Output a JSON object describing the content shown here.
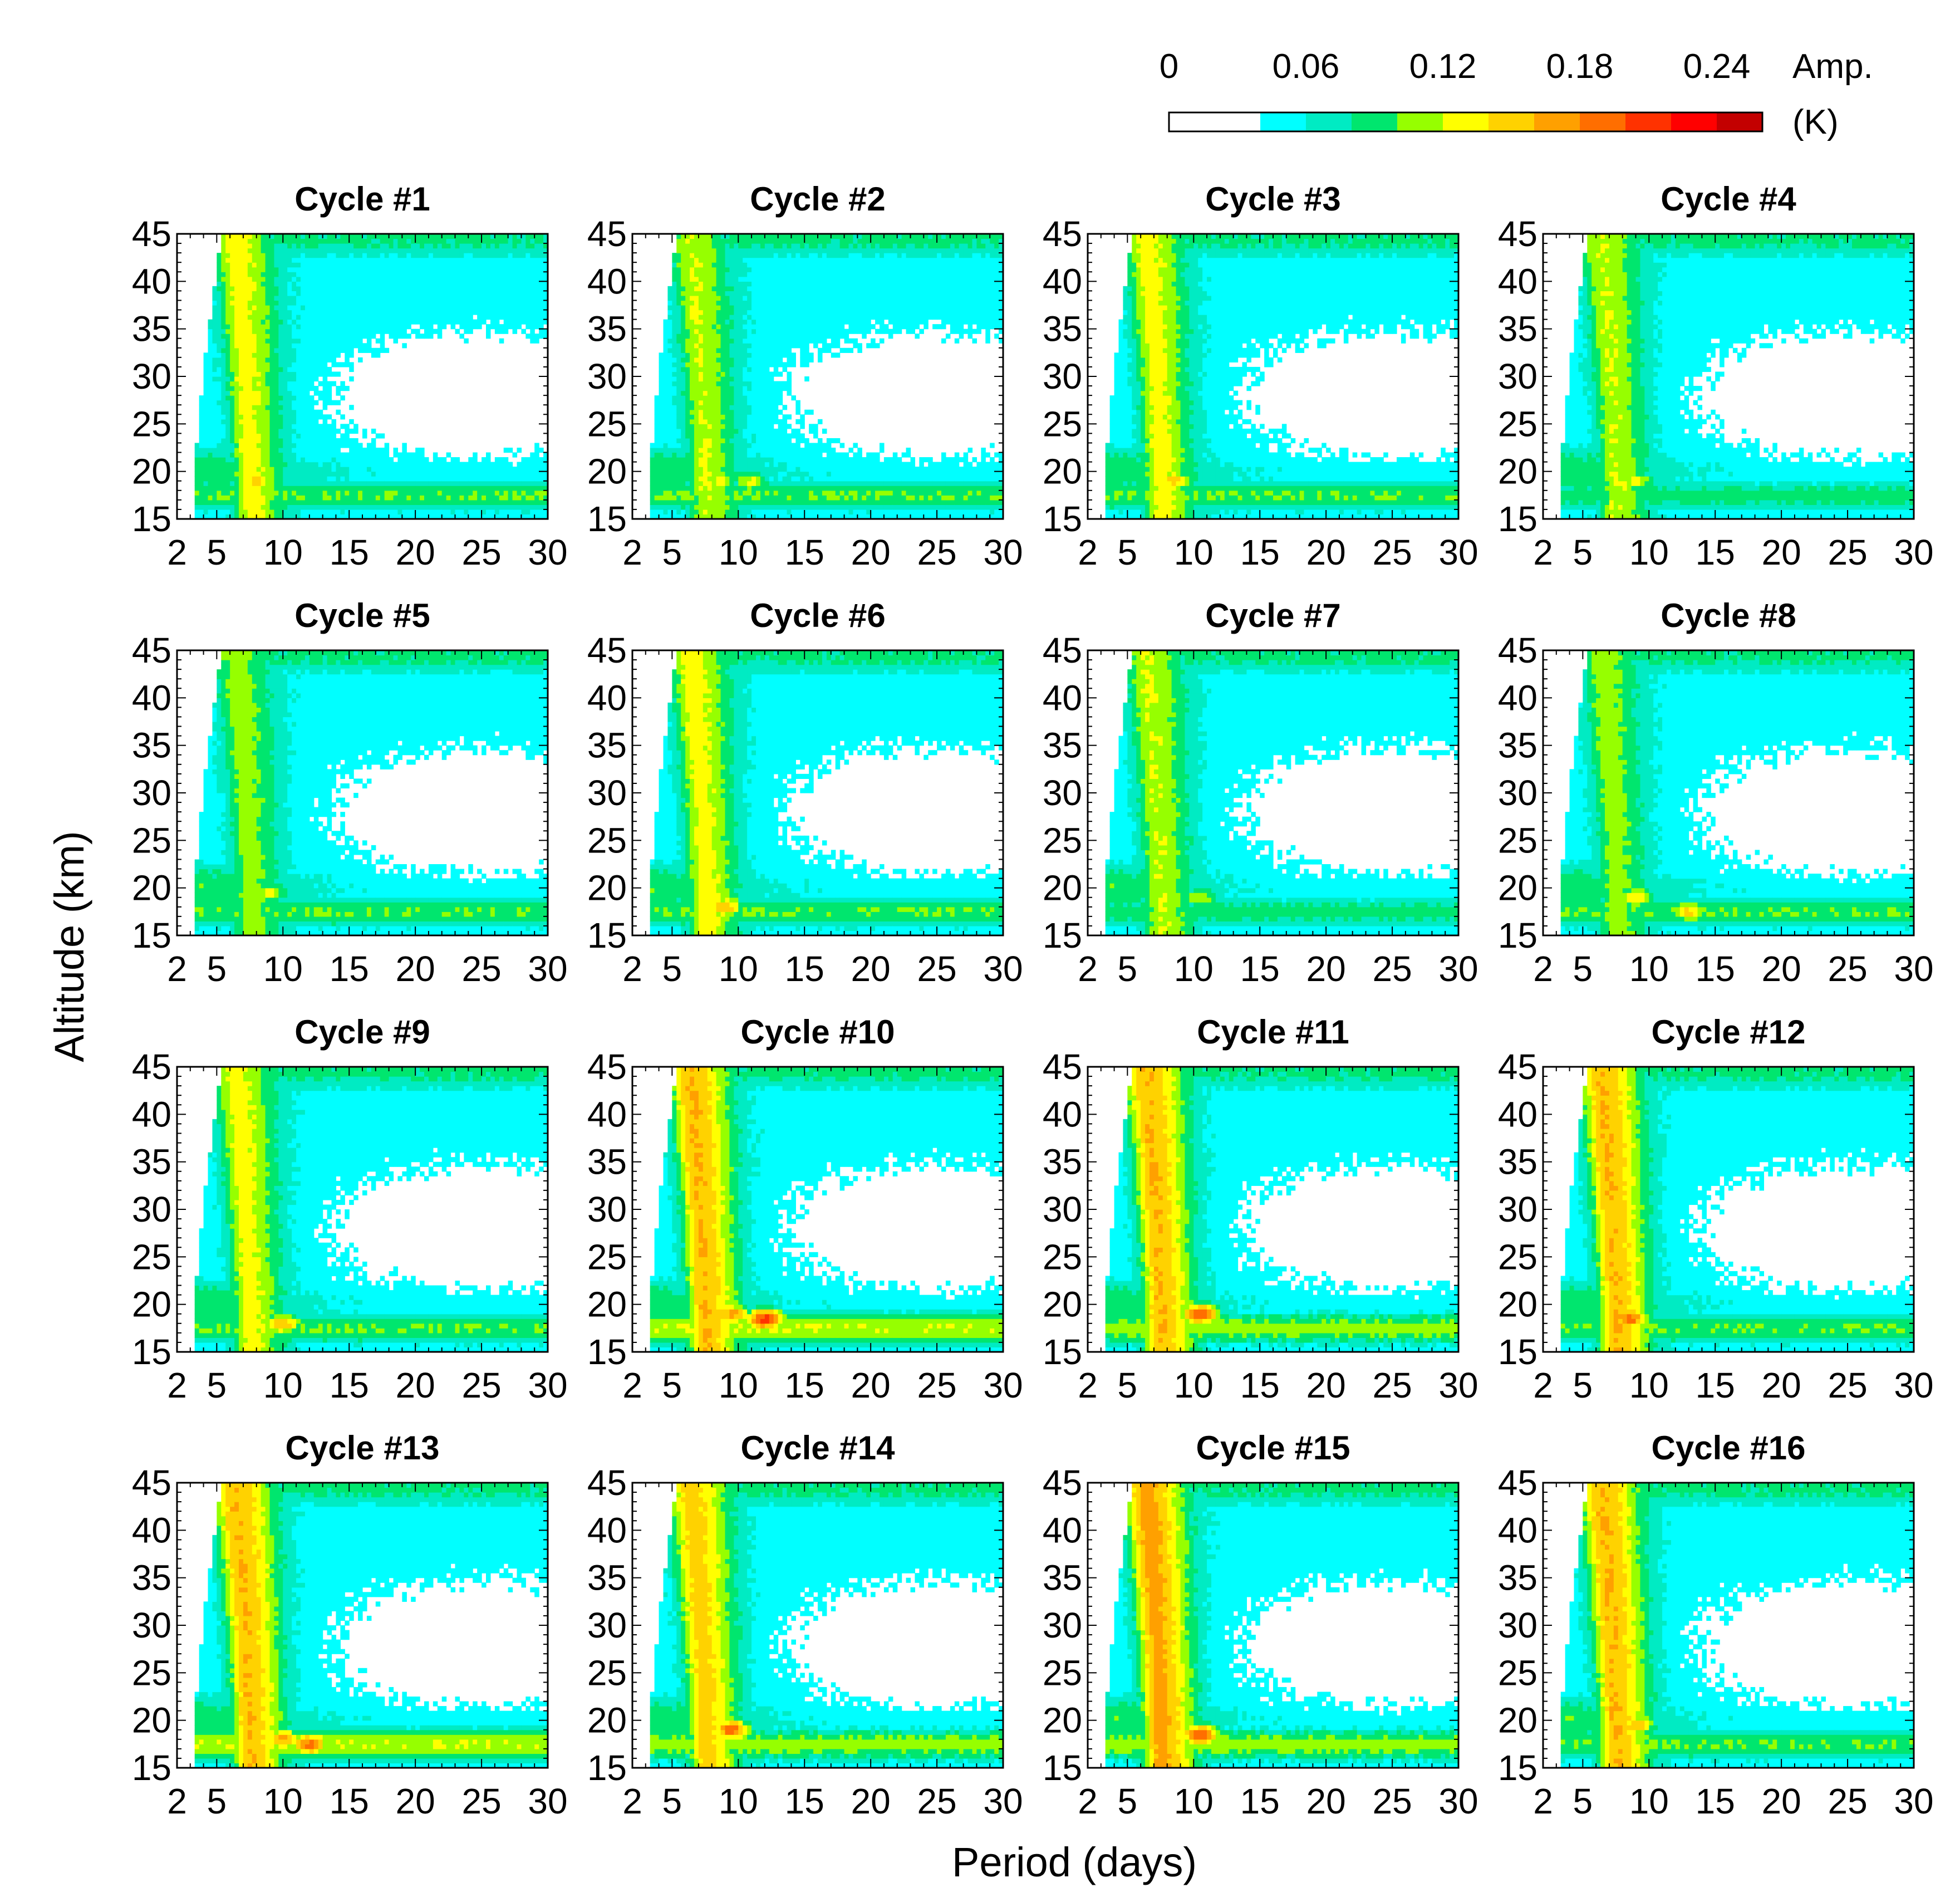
{
  "colors": {
    "levels": [
      "#ffffff",
      "#00ffff",
      "#00ebc3",
      "#00e66e",
      "#96ff00",
      "#ffff00",
      "#ffd200",
      "#ffa000",
      "#ff6e00",
      "#ff3200",
      "#ff0000",
      "#c30000"
    ],
    "frame": "#000000",
    "background": "#ffffff"
  },
  "colorbar": {
    "tick_labels": [
      "0",
      "0.06",
      "0.12",
      "0.18",
      "0.24"
    ],
    "tick_values": [
      0,
      0.06,
      0.12,
      0.18,
      0.24
    ],
    "boundaries": [
      0,
      0.04,
      0.06,
      0.08,
      0.1,
      0.12,
      0.14,
      0.16,
      0.18,
      0.2,
      0.22,
      0.24,
      0.26
    ],
    "label_line1": "Amp.",
    "label_line2": "(K)"
  },
  "chart_data": {
    "type": "heatmap",
    "description_xlabel": "Period (days)",
    "xlabel": "Period (days)",
    "ylabel": "Altitude (km)",
    "xlim": [
      2,
      30
    ],
    "ylim": [
      15,
      45
    ],
    "xticks": [
      2,
      5,
      10,
      15,
      20,
      25,
      30
    ],
    "xtick_labels": [
      "2",
      "5",
      "10",
      "15",
      "20",
      "25",
      "30"
    ],
    "yticks": [
      15,
      20,
      25,
      30,
      35,
      40,
      45
    ],
    "ytick_labels": [
      "15",
      "20",
      "25",
      "30",
      "35",
      "40",
      "45"
    ],
    "panels": [
      {
        "title": "Cycle #1",
        "ridge": 0.13,
        "hot": [
          [
            8.0,
            19,
            0.15
          ]
        ],
        "tail": 0.1
      },
      {
        "title": "Cycle #2",
        "ridge": 0.12,
        "hot": [
          [
            8.5,
            19,
            0.13
          ],
          [
            11,
            19,
            0.13
          ]
        ],
        "tail": 0.1
      },
      {
        "title": "Cycle #3",
        "ridge": 0.13,
        "hot": [
          [
            8.5,
            19,
            0.15
          ]
        ],
        "tail": 0.1
      },
      {
        "title": "Cycle #4",
        "ridge": 0.12,
        "hot": [
          [
            9,
            19,
            0.13
          ]
        ],
        "tail": 0.09
      },
      {
        "title": "Cycle #5",
        "ridge": 0.11,
        "hot": [
          [
            9,
            19.5,
            0.13
          ]
        ],
        "tail": 0.1
      },
      {
        "title": "Cycle #6",
        "ridge": 0.13,
        "hot": [
          [
            9,
            18,
            0.16
          ]
        ],
        "tail": 0.1
      },
      {
        "title": "Cycle #7",
        "ridge": 0.12,
        "hot": [
          [
            10.5,
            19,
            0.12
          ]
        ],
        "tail": 0.09
      },
      {
        "title": "Cycle #8",
        "ridge": 0.11,
        "hot": [
          [
            9,
            19,
            0.14
          ],
          [
            13,
            17.5,
            0.15
          ]
        ],
        "tail": 0.1
      },
      {
        "title": "Cycle #9",
        "ridge": 0.13,
        "hot": [
          [
            10,
            18,
            0.16
          ]
        ],
        "tail": 0.1
      },
      {
        "title": "Cycle #10",
        "ridge": 0.16,
        "hot": [
          [
            9.5,
            19,
            0.17
          ],
          [
            12,
            18.5,
            0.21
          ]
        ],
        "tail": 0.12
      },
      {
        "title": "Cycle #11",
        "ridge": 0.16,
        "hot": [
          [
            10.5,
            19,
            0.2
          ]
        ],
        "tail": 0.11
      },
      {
        "title": "Cycle #12",
        "ridge": 0.16,
        "hot": [
          [
            8.5,
            18.5,
            0.19
          ]
        ],
        "tail": 0.1
      },
      {
        "title": "Cycle #13",
        "ridge": 0.16,
        "hot": [
          [
            10,
            18,
            0.17
          ],
          [
            12,
            17.5,
            0.19
          ]
        ],
        "tail": 0.12
      },
      {
        "title": "Cycle #14",
        "ridge": 0.15,
        "hot": [
          [
            9.5,
            19,
            0.19
          ]
        ],
        "tail": 0.11
      },
      {
        "title": "Cycle #15",
        "ridge": 0.17,
        "hot": [
          [
            10.5,
            18.5,
            0.2
          ]
        ],
        "tail": 0.11
      },
      {
        "title": "Cycle #16",
        "ridge": 0.16,
        "hot": [
          [
            9,
            19.5,
            0.16
          ]
        ],
        "tail": 0.1
      }
    ]
  }
}
